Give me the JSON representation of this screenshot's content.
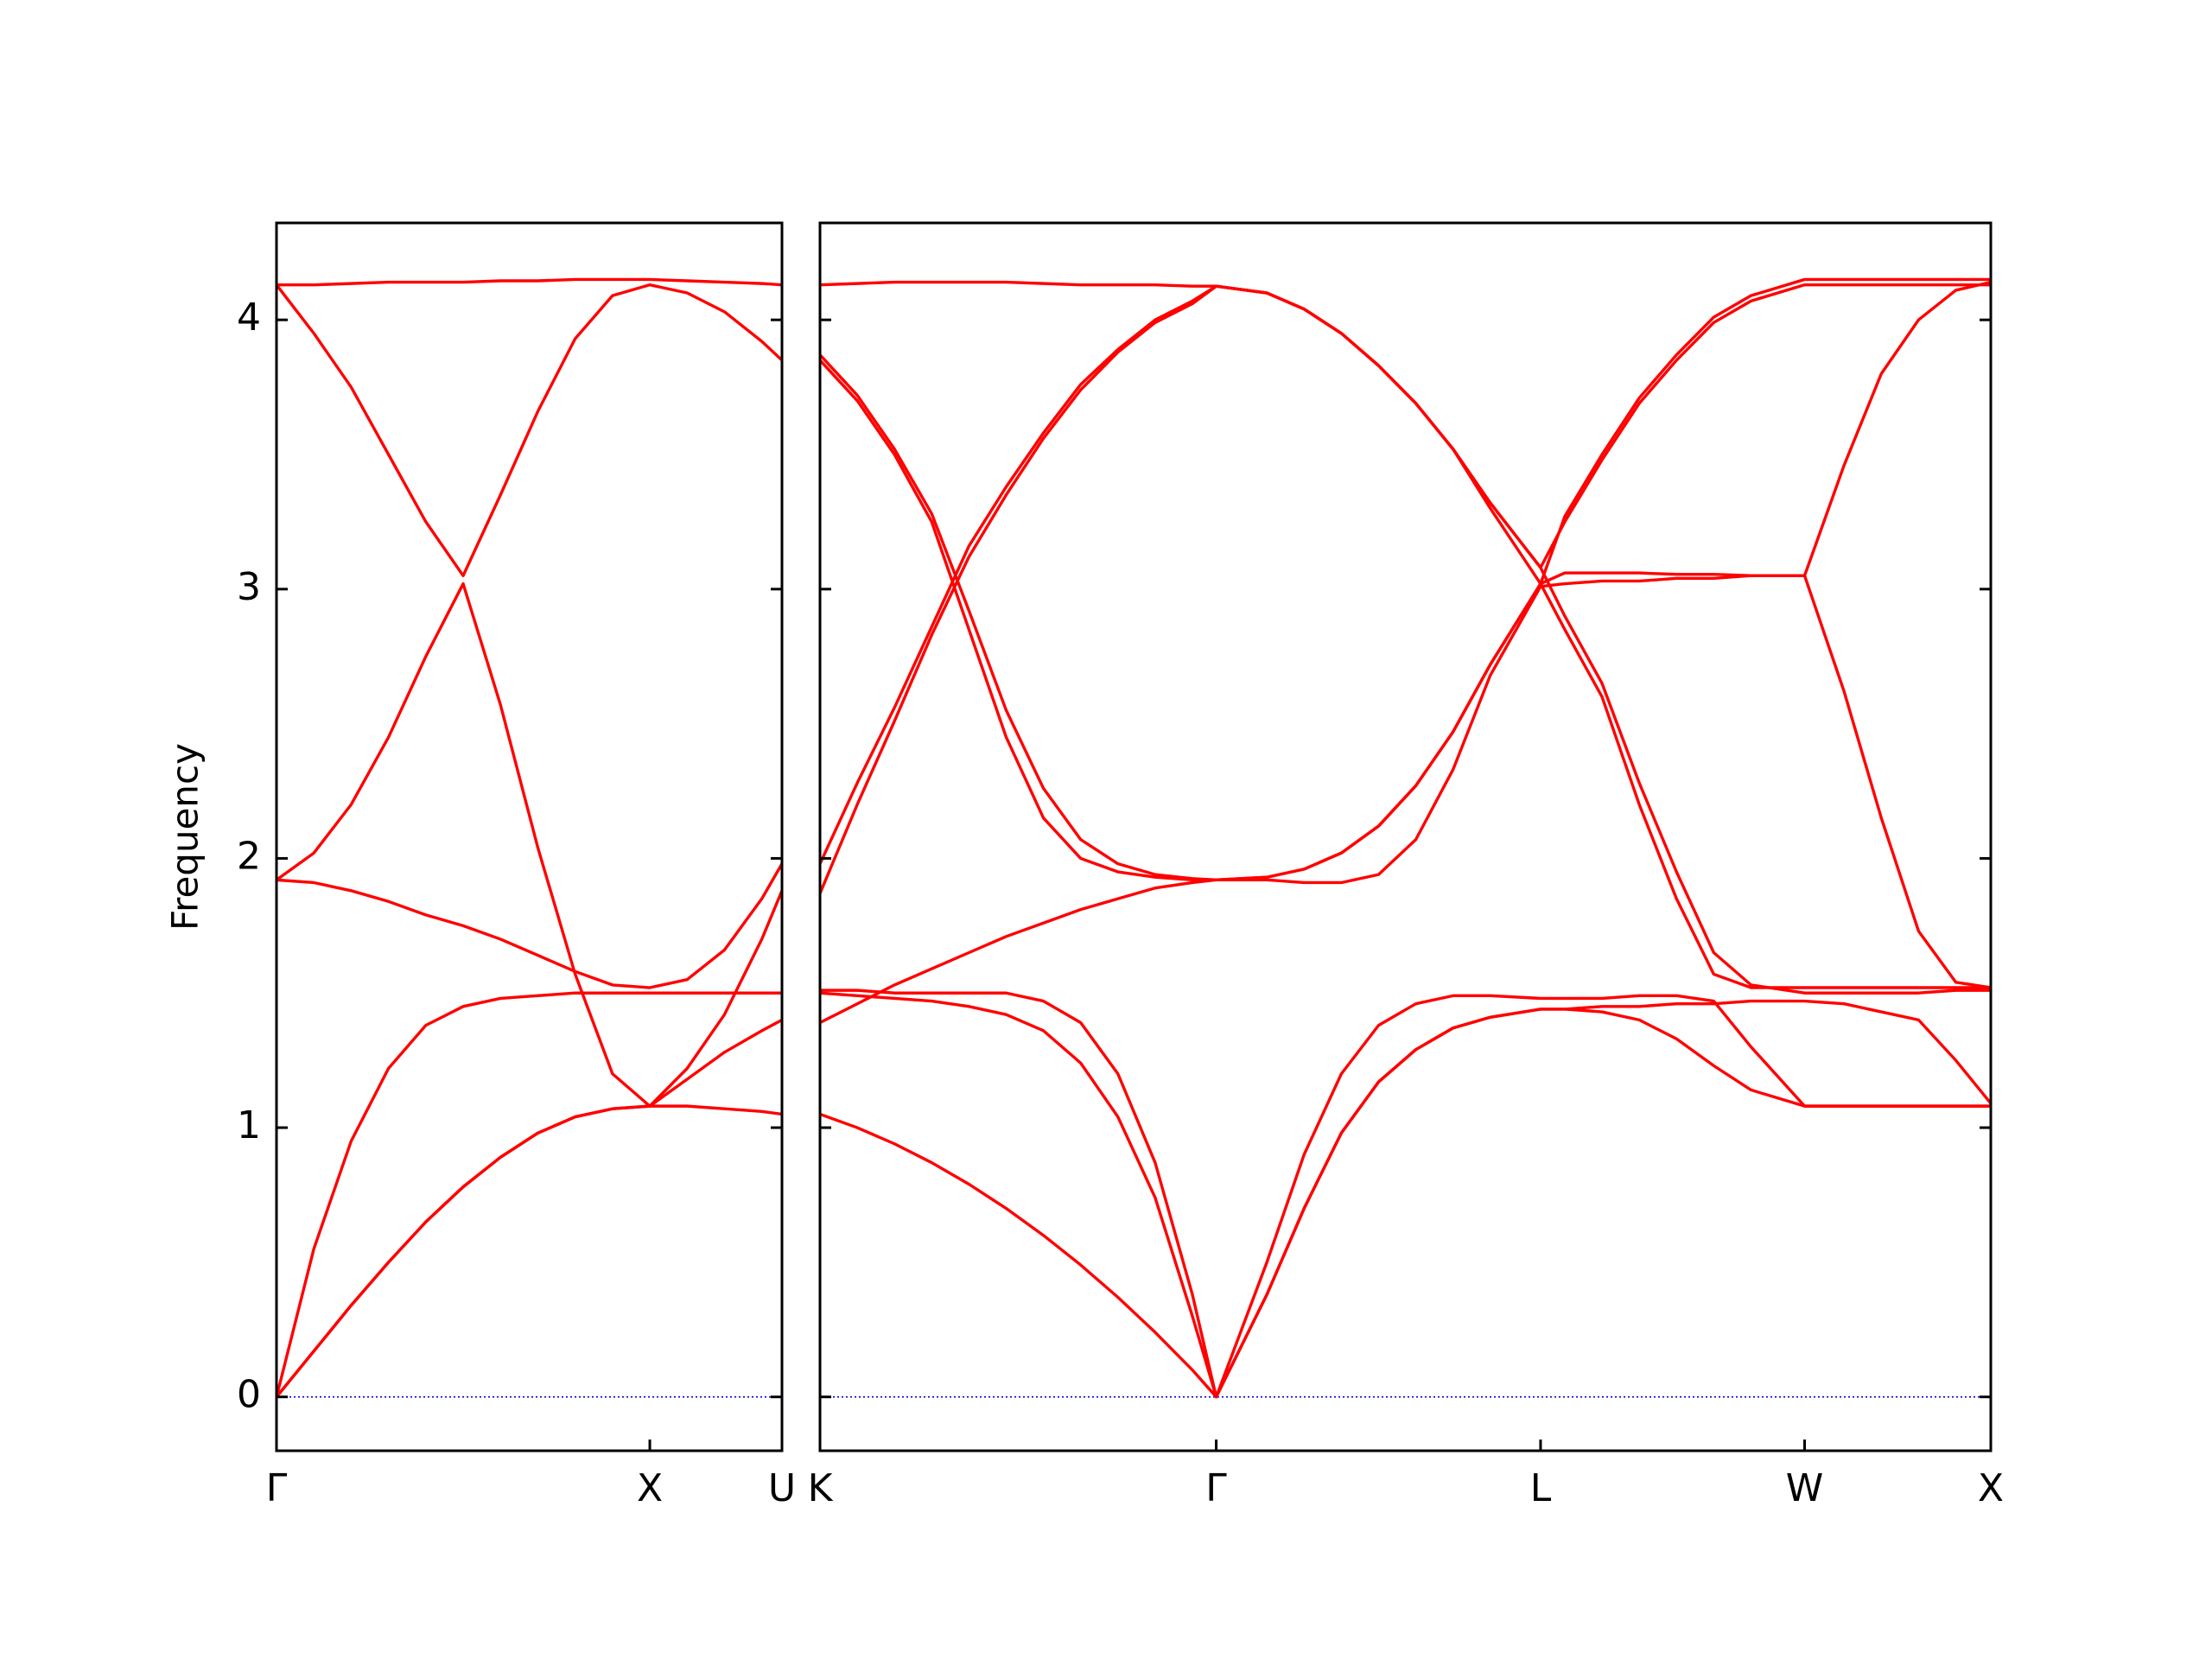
{
  "chart_data": [
    {
      "type": "line",
      "ylabel": "Frequency",
      "xlim": [
        0,
        1.354
      ],
      "xticks": [
        {
          "value": 0,
          "label": "Γ"
        },
        {
          "value": 1,
          "label": "X"
        },
        {
          "value": 1.354,
          "label": "U"
        }
      ],
      "ylim": [
        -0.2,
        4.36
      ],
      "yticks": [
        0,
        1,
        2,
        3,
        4
      ],
      "ytick_labels": true,
      "hline": {
        "value": 0,
        "color": "#0000cc",
        "dash": "dotted"
      },
      "x": [
        0,
        0.1,
        0.2,
        0.3,
        0.4,
        0.5,
        0.6,
        0.7,
        0.8,
        0.9,
        1,
        1.1,
        1.2,
        1.3,
        1.354
      ],
      "series": [
        {
          "color": "#ff0000",
          "values": [
            0,
            0.17,
            0.34,
            0.5,
            0.65,
            0.78,
            0.89,
            0.98,
            1.04,
            1.07,
            1.08,
            1.08,
            1.07,
            1.06,
            1.05
          ]
        },
        {
          "color": "#ff0000",
          "values": [
            0,
            0.55,
            0.95,
            1.22,
            1.38,
            1.45,
            1.48,
            1.49,
            1.5,
            1.5,
            1.5,
            1.5,
            1.5,
            1.5,
            1.5
          ]
        },
        {
          "color": "#ff0000",
          "values": [
            1.92,
            1.91,
            1.88,
            1.84,
            1.79,
            1.75,
            1.7,
            1.64,
            1.58,
            1.53,
            1.52,
            1.55,
            1.66,
            1.85,
            1.98
          ]
        },
        {
          "color": "#ff0000",
          "values": [
            1.92,
            2.02,
            2.2,
            2.45,
            2.75,
            3.02,
            2.57,
            2.04,
            1.57,
            1.2,
            1.08,
            1.18,
            1.28,
            1.36,
            1.4
          ]
        },
        {
          "color": "#ff0000",
          "values": [
            4.13,
            3.95,
            3.75,
            3.5,
            3.25,
            3.05,
            3.35,
            3.66,
            3.93,
            4.09,
            4.13,
            4.1,
            4.03,
            3.92,
            3.85
          ]
        },
        {
          "color": "#ff0000",
          "values": [
            4.13,
            4.13,
            4.135,
            4.14,
            4.14,
            4.14,
            4.145,
            4.145,
            4.15,
            4.15,
            4.15,
            4.145,
            4.14,
            4.135,
            4.13
          ]
        },
        {
          "color": "#ff0000",
          "values": [
            0,
            0.17,
            0.34,
            0.5,
            0.65,
            0.78,
            0.89,
            0.98,
            1.04,
            1.07,
            1.08,
            1.22,
            1.42,
            1.7,
            1.88
          ]
        }
      ]
    },
    {
      "type": "line",
      "xlim": [
        0,
        3.144
      ],
      "xticks": [
        {
          "value": 0,
          "label": "K"
        },
        {
          "value": 1.064,
          "label": "Γ"
        },
        {
          "value": 1.935,
          "label": "L"
        },
        {
          "value": 2.644,
          "label": "W"
        },
        {
          "value": 3.144,
          "label": "X"
        }
      ],
      "ylim": [
        -0.2,
        4.36
      ],
      "yticks": [
        0,
        1,
        2,
        3,
        4
      ],
      "ytick_labels": false,
      "hline": {
        "value": 0,
        "color": "#0000cc",
        "dash": "dotted"
      },
      "x": [
        0,
        0.1,
        0.2,
        0.3,
        0.4,
        0.5,
        0.6,
        0.7,
        0.8,
        0.9,
        1,
        1.064,
        1.2,
        1.3,
        1.4,
        1.5,
        1.6,
        1.7,
        1.8,
        1.935,
        2,
        2.1,
        2.2,
        2.3,
        2.4,
        2.5,
        2.644,
        2.75,
        2.85,
        2.95,
        3.05,
        3.144
      ],
      "series": [
        {
          "color": "#ff0000",
          "values": [
            1.05,
            1.0,
            0.94,
            0.87,
            0.79,
            0.7,
            0.6,
            0.49,
            0.37,
            0.24,
            0.1,
            0,
            0.38,
            0.7,
            0.98,
            1.17,
            1.29,
            1.37,
            1.41,
            1.44,
            1.44,
            1.43,
            1.4,
            1.33,
            1.23,
            1.14,
            1.08,
            1.08,
            1.08,
            1.08,
            1.08,
            1.08
          ]
        },
        {
          "color": "#ff0000",
          "values": [
            1.39,
            1.46,
            1.53,
            1.59,
            1.65,
            1.71,
            1.76,
            1.81,
            1.85,
            1.89,
            1.91,
            1.92,
            1.92,
            1.91,
            1.91,
            1.94,
            2.07,
            2.33,
            2.68,
            3.01,
            3.02,
            3.03,
            3.03,
            3.04,
            3.04,
            3.05,
            3.05,
            2.62,
            2.15,
            1.73,
            1.54,
            1.52
          ]
        },
        {
          "color": "#ff0000",
          "values": [
            1.51,
            1.51,
            1.5,
            1.5,
            1.5,
            1.5,
            1.47,
            1.39,
            1.2,
            0.87,
            0.38,
            0,
            0.5,
            0.9,
            1.2,
            1.38,
            1.46,
            1.49,
            1.49,
            1.48,
            1.48,
            1.48,
            1.49,
            1.49,
            1.47,
            1.3,
            1.08,
            1.08,
            1.08,
            1.08,
            1.08,
            1.08
          ]
        },
        {
          "color": "#ff0000",
          "values": [
            1.5,
            1.49,
            1.48,
            1.47,
            1.45,
            1.42,
            1.36,
            1.24,
            1.04,
            0.74,
            0.3,
            0,
            0.38,
            0.7,
            0.98,
            1.17,
            1.29,
            1.37,
            1.41,
            1.44,
            1.44,
            1.45,
            1.45,
            1.46,
            1.46,
            1.47,
            1.47,
            1.46,
            1.43,
            1.4,
            1.25,
            1.09
          ]
        },
        {
          "color": "#ff0000",
          "values": [
            1.87,
            2.2,
            2.51,
            2.83,
            3.12,
            3.35,
            3.56,
            3.74,
            3.88,
            3.99,
            4.06,
            4.125,
            4.1,
            4.04,
            3.95,
            3.83,
            3.69,
            3.52,
            3.32,
            3.08,
            3.25,
            3.48,
            3.69,
            3.85,
            3.99,
            4.07,
            4.13,
            4.13,
            4.13,
            4.13,
            4.13,
            4.13
          ]
        },
        {
          "color": "#ff0000",
          "values": [
            1.98,
            2.28,
            2.56,
            2.86,
            3.16,
            3.38,
            3.58,
            3.76,
            3.89,
            4.0,
            4.07,
            4.125,
            4.1,
            4.04,
            3.95,
            3.83,
            3.69,
            3.52,
            3.3,
            3.02,
            3.27,
            3.5,
            3.71,
            3.87,
            4.01,
            4.09,
            4.15,
            4.15,
            4.15,
            4.15,
            4.15,
            4.15
          ]
        },
        {
          "color": "#ff0000",
          "values": [
            3.85,
            3.7,
            3.5,
            3.25,
            2.85,
            2.45,
            2.15,
            2.0,
            1.95,
            1.93,
            1.92,
            1.92,
            1.93,
            1.96,
            2.02,
            2.12,
            2.27,
            2.47,
            2.72,
            3.02,
            3.06,
            3.06,
            3.06,
            3.055,
            3.055,
            3.05,
            3.05,
            3.46,
            3.8,
            4.0,
            4.11,
            4.14
          ]
        },
        {
          "color": "#ff0000",
          "values": [
            3.87,
            3.72,
            3.52,
            3.28,
            2.92,
            2.55,
            2.26,
            2.07,
            1.98,
            1.94,
            1.925,
            1.92,
            1.93,
            1.96,
            2.02,
            2.12,
            2.27,
            2.47,
            2.72,
            3.02,
            2.85,
            2.6,
            2.2,
            1.85,
            1.57,
            1.52,
            1.52,
            1.52,
            1.52,
            1.52,
            1.52,
            1.52
          ]
        },
        {
          "color": "#ff0000",
          "values": [
            4.13,
            4.135,
            4.14,
            4.14,
            4.14,
            4.14,
            4.135,
            4.13,
            4.13,
            4.13,
            4.125,
            4.125,
            4.1,
            4.04,
            3.95,
            3.83,
            3.69,
            3.52,
            3.32,
            3.08,
            2.9,
            2.65,
            2.28,
            1.95,
            1.65,
            1.53,
            1.5,
            1.5,
            1.5,
            1.5,
            1.51,
            1.51
          ]
        }
      ]
    }
  ]
}
